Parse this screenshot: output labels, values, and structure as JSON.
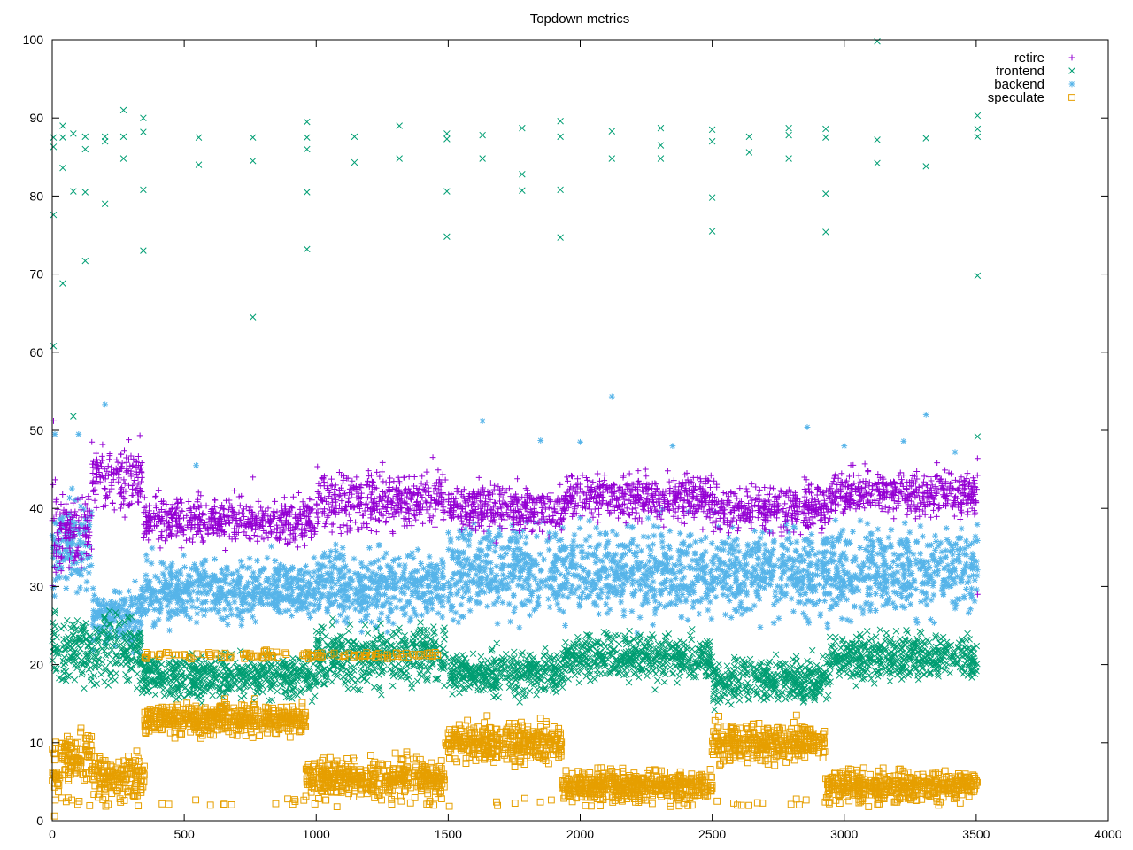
{
  "chart_data": {
    "type": "scatter",
    "title": "Topdown metrics",
    "xlabel": "",
    "ylabel": "",
    "xlim": [
      0,
      4000
    ],
    "ylim": [
      0,
      100
    ],
    "xticks": [
      0,
      500,
      1000,
      1500,
      2000,
      2500,
      3000,
      3500,
      4000
    ],
    "yticks": [
      0,
      10,
      20,
      30,
      40,
      50,
      60,
      70,
      80,
      90,
      100
    ],
    "grid": false,
    "legend_position": "top-right",
    "x_end": 3505,
    "series": [
      {
        "name": "retire",
        "marker": "plus",
        "color": "#9400d3",
        "segments": [
          {
            "x0": 0,
            "x1": 30,
            "center": 36,
            "spread": 6
          },
          {
            "x0": 30,
            "x1": 150,
            "center": 37,
            "spread": 5
          },
          {
            "x0": 150,
            "x1": 340,
            "center": 44,
            "spread": 4
          },
          {
            "x0": 340,
            "x1": 1000,
            "center": 38.5,
            "spread": 3
          },
          {
            "x0": 1000,
            "x1": 1490,
            "center": 41,
            "spread": 4
          },
          {
            "x0": 1500,
            "x1": 1940,
            "center": 40,
            "spread": 3
          },
          {
            "x0": 1940,
            "x1": 2500,
            "center": 41.5,
            "spread": 3
          },
          {
            "x0": 2500,
            "x1": 2940,
            "center": 40,
            "spread": 3
          },
          {
            "x0": 2940,
            "x1": 3505,
            "center": 42,
            "spread": 3
          }
        ],
        "outliers": [
          {
            "x": 5,
            "y": 51.2
          },
          {
            "x": 150,
            "y": 48.5
          },
          {
            "x": 290,
            "y": 48.8
          },
          {
            "x": 760,
            "y": 44
          },
          {
            "x": 3505,
            "y": 46.4
          },
          {
            "x": 3505,
            "y": 29
          }
        ]
      },
      {
        "name": "frontend",
        "marker": "cross",
        "color": "#009e73",
        "segments": [
          {
            "x0": 0,
            "x1": 340,
            "center": 22,
            "spread": 5
          },
          {
            "x0": 340,
            "x1": 1000,
            "center": 18.5,
            "spread": 3
          },
          {
            "x0": 1000,
            "x1": 1490,
            "center": 21,
            "spread": 4
          },
          {
            "x0": 1500,
            "x1": 1940,
            "center": 19,
            "spread": 3
          },
          {
            "x0": 1940,
            "x1": 2500,
            "center": 21,
            "spread": 3
          },
          {
            "x0": 2500,
            "x1": 2940,
            "center": 18,
            "spread": 3
          },
          {
            "x0": 2940,
            "x1": 3505,
            "center": 21,
            "spread": 3
          }
        ],
        "outliers": [
          {
            "x": 5,
            "y": 87.5
          },
          {
            "x": 5,
            "y": 86.3
          },
          {
            "x": 5,
            "y": 77.6
          },
          {
            "x": 5,
            "y": 60.8
          },
          {
            "x": 40,
            "y": 89
          },
          {
            "x": 40,
            "y": 87.5
          },
          {
            "x": 40,
            "y": 83.6
          },
          {
            "x": 40,
            "y": 68.8
          },
          {
            "x": 80,
            "y": 88
          },
          {
            "x": 80,
            "y": 80.6
          },
          {
            "x": 80,
            "y": 51.8
          },
          {
            "x": 125,
            "y": 87.6
          },
          {
            "x": 125,
            "y": 86
          },
          {
            "x": 125,
            "y": 80.5
          },
          {
            "x": 125,
            "y": 71.7
          },
          {
            "x": 200,
            "y": 87.6
          },
          {
            "x": 200,
            "y": 87
          },
          {
            "x": 200,
            "y": 79
          },
          {
            "x": 270,
            "y": 91
          },
          {
            "x": 270,
            "y": 87.6
          },
          {
            "x": 270,
            "y": 84.8
          },
          {
            "x": 345,
            "y": 90
          },
          {
            "x": 345,
            "y": 88.2
          },
          {
            "x": 345,
            "y": 80.8
          },
          {
            "x": 345,
            "y": 73
          },
          {
            "x": 555,
            "y": 87.5
          },
          {
            "x": 555,
            "y": 84
          },
          {
            "x": 760,
            "y": 87.5
          },
          {
            "x": 760,
            "y": 84.5
          },
          {
            "x": 760,
            "y": 64.5
          },
          {
            "x": 965,
            "y": 89.5
          },
          {
            "x": 965,
            "y": 87.5
          },
          {
            "x": 965,
            "y": 86
          },
          {
            "x": 965,
            "y": 80.5
          },
          {
            "x": 965,
            "y": 73.2
          },
          {
            "x": 1145,
            "y": 87.6
          },
          {
            "x": 1145,
            "y": 84.3
          },
          {
            "x": 1315,
            "y": 89
          },
          {
            "x": 1315,
            "y": 84.8
          },
          {
            "x": 1495,
            "y": 88
          },
          {
            "x": 1495,
            "y": 87.3
          },
          {
            "x": 1495,
            "y": 80.6
          },
          {
            "x": 1495,
            "y": 74.8
          },
          {
            "x": 1630,
            "y": 87.8
          },
          {
            "x": 1630,
            "y": 84.8
          },
          {
            "x": 1780,
            "y": 88.7
          },
          {
            "x": 1780,
            "y": 82.8
          },
          {
            "x": 1780,
            "y": 80.7
          },
          {
            "x": 1925,
            "y": 89.6
          },
          {
            "x": 1925,
            "y": 87.6
          },
          {
            "x": 1925,
            "y": 80.8
          },
          {
            "x": 1925,
            "y": 74.7
          },
          {
            "x": 2120,
            "y": 88.3
          },
          {
            "x": 2120,
            "y": 84.8
          },
          {
            "x": 2305,
            "y": 88.7
          },
          {
            "x": 2305,
            "y": 86.5
          },
          {
            "x": 2305,
            "y": 84.8
          },
          {
            "x": 2500,
            "y": 88.5
          },
          {
            "x": 2500,
            "y": 87
          },
          {
            "x": 2500,
            "y": 79.8
          },
          {
            "x": 2500,
            "y": 75.5
          },
          {
            "x": 2640,
            "y": 87.6
          },
          {
            "x": 2640,
            "y": 85.6
          },
          {
            "x": 2790,
            "y": 88.7
          },
          {
            "x": 2790,
            "y": 87.8
          },
          {
            "x": 2790,
            "y": 84.8
          },
          {
            "x": 2930,
            "y": 88.6
          },
          {
            "x": 2930,
            "y": 87.5
          },
          {
            "x": 2930,
            "y": 80.3
          },
          {
            "x": 2930,
            "y": 75.4
          },
          {
            "x": 3125,
            "y": 99.8
          },
          {
            "x": 3125,
            "y": 87.2
          },
          {
            "x": 3125,
            "y": 84.2
          },
          {
            "x": 3310,
            "y": 87.4
          },
          {
            "x": 3310,
            "y": 83.8
          },
          {
            "x": 3505,
            "y": 90.3
          },
          {
            "x": 3505,
            "y": 88.6
          },
          {
            "x": 3505,
            "y": 87.6
          },
          {
            "x": 3505,
            "y": 69.8
          },
          {
            "x": 3505,
            "y": 49.2
          }
        ]
      },
      {
        "name": "backend",
        "marker": "star",
        "color": "#56b4e9",
        "segments": [
          {
            "x0": 0,
            "x1": 150,
            "center": 35,
            "spread": 6
          },
          {
            "x0": 150,
            "x1": 340,
            "center": 26,
            "spread": 4
          },
          {
            "x0": 340,
            "x1": 1000,
            "center": 29.5,
            "spread": 4
          },
          {
            "x0": 1000,
            "x1": 1490,
            "center": 30,
            "spread": 5
          },
          {
            "x0": 1500,
            "x1": 3505,
            "center": 32,
            "spread": 6
          }
        ],
        "outliers": [
          {
            "x": 10,
            "y": 49.5
          },
          {
            "x": 100,
            "y": 49.5
          },
          {
            "x": 200,
            "y": 53.3
          },
          {
            "x": 2120,
            "y": 54.3
          },
          {
            "x": 1630,
            "y": 51.2
          },
          {
            "x": 3310,
            "y": 52
          },
          {
            "x": 2860,
            "y": 50.4
          },
          {
            "x": 1850,
            "y": 48.7
          },
          {
            "x": 2000,
            "y": 48.5
          },
          {
            "x": 2350,
            "y": 48
          },
          {
            "x": 3000,
            "y": 48
          },
          {
            "x": 3225,
            "y": 48.6
          },
          {
            "x": 3420,
            "y": 47.2
          },
          {
            "x": 545,
            "y": 45.5
          }
        ]
      },
      {
        "name": "speculate",
        "marker": "square",
        "color": "#e69f00",
        "segments": [
          {
            "x0": 0,
            "x1": 30,
            "center": 6,
            "spread": 5
          },
          {
            "x0": 30,
            "x1": 150,
            "center": 8.5,
            "spread": 3
          },
          {
            "x0": 150,
            "x1": 350,
            "center": 5.5,
            "spread": 3
          },
          {
            "x0": 350,
            "x1": 960,
            "center": 13,
            "spread": 2
          },
          {
            "x0": 960,
            "x1": 1490,
            "center": 5.5,
            "spread": 2.5
          },
          {
            "x0": 1490,
            "x1": 1930,
            "center": 10,
            "spread": 2.5
          },
          {
            "x0": 1930,
            "x1": 2500,
            "center": 4.5,
            "spread": 2
          },
          {
            "x0": 2500,
            "x1": 2930,
            "center": 10,
            "spread": 2.5
          },
          {
            "x0": 2930,
            "x1": 3505,
            "center": 4.5,
            "spread": 2
          }
        ],
        "bands": [
          {
            "x0": 350,
            "x1": 1490,
            "center": 21.2,
            "spread": 0.8,
            "count": 130
          }
        ],
        "floor": {
          "x0": 0,
          "x1": 3505,
          "y": 1.8,
          "count": 90
        }
      }
    ]
  }
}
